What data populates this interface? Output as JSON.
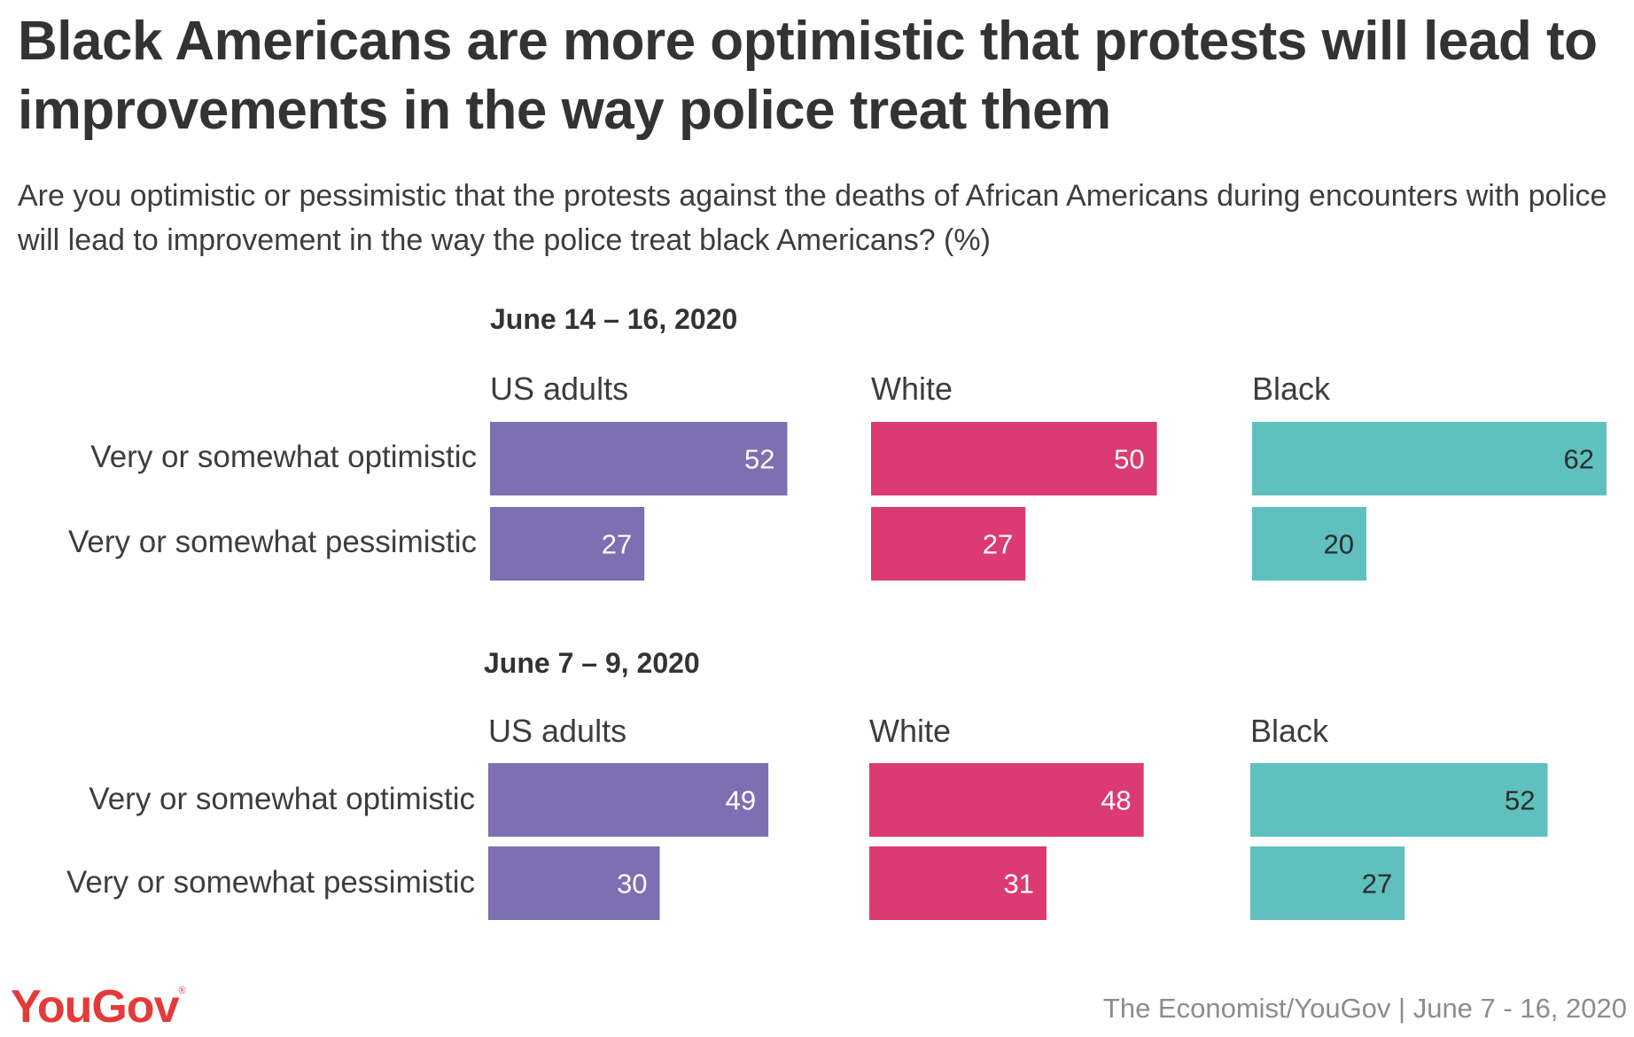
{
  "title": "Black Americans are more optimistic that protests will lead to improvements in the way police treat them",
  "subtitle": "Are you optimistic or pessimistic that the protests against the deaths of African Americans during encounters with police will lead to improvement in the way the police treat black Americans? (%)",
  "footer": {
    "logo": "YouGov",
    "logo_mark": "®",
    "source": "The Economist/YouGov | June 7 - 16, 2020"
  },
  "colors": {
    "US adults": "#7d6fb2",
    "White": "#dc3a72",
    "Black": "#5fc0bd"
  },
  "chart_data": [
    {
      "type": "bar",
      "orientation": "horizontal",
      "title": "June 14 – 16, 2020",
      "categories": [
        "Very or somewhat optimistic",
        "Very or somewhat pessimistic"
      ],
      "series": [
        {
          "name": "US adults",
          "values": [
            52,
            27
          ]
        },
        {
          "name": "White",
          "values": [
            50,
            27
          ]
        },
        {
          "name": "Black",
          "values": [
            62,
            20
          ]
        }
      ],
      "xlim": [
        0,
        62
      ],
      "grid": false
    },
    {
      "type": "bar",
      "orientation": "horizontal",
      "title": "June 7 – 9, 2020",
      "categories": [
        "Very or somewhat optimistic",
        "Very or somewhat pessimistic"
      ],
      "series": [
        {
          "name": "US adults",
          "values": [
            49,
            30
          ]
        },
        {
          "name": "White",
          "values": [
            48,
            31
          ]
        },
        {
          "name": "Black",
          "values": [
            52,
            27
          ]
        }
      ],
      "xlim": [
        0,
        62
      ],
      "grid": false
    }
  ]
}
